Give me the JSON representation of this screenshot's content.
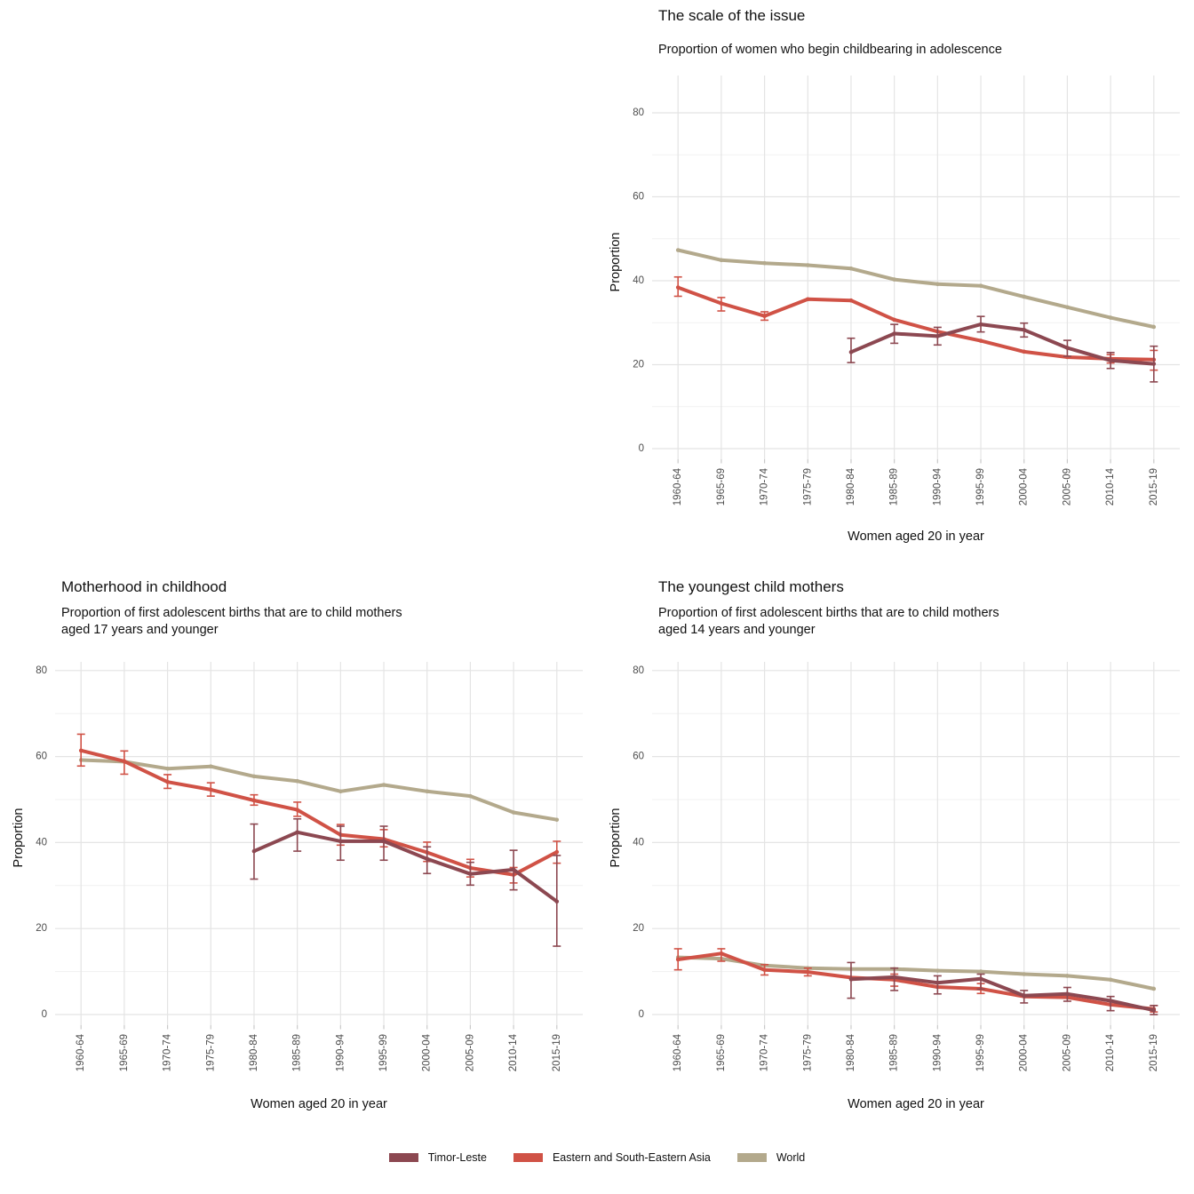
{
  "colors": {
    "timor_leste": "#8c4851",
    "eastern_se_asia": "#d05246",
    "world": "#b3a98c",
    "grid_major": "#e4e4e4",
    "grid_minor": "#f1f1f1",
    "axis_tick": "#c9c9c9",
    "tick_label": "#4d4d4d",
    "text": "#111111"
  },
  "legend": {
    "items": [
      {
        "label": "Timor-Leste",
        "color": "#8c4851"
      },
      {
        "label": "Eastern and South-Eastern Asia",
        "color": "#d05246"
      },
      {
        "label": "World",
        "color": "#b3a98c"
      }
    ]
  },
  "chart_data": [
    {
      "type": "line",
      "layout": "top",
      "title": "The scale of the issue",
      "subtitle_lines": [
        "Proportion of women who begin childbearing in adolescence"
      ],
      "xlabel": "Women aged 20 in year",
      "ylabel": "Proportion",
      "ylim": [
        0,
        80
      ],
      "y_ticks": [
        0,
        20,
        40,
        60,
        80
      ],
      "y_minor_ticks": [
        10,
        30,
        50,
        70
      ],
      "grid": true,
      "legend_position": "bottom",
      "categories": [
        "1960-64",
        "1965-69",
        "1970-74",
        "1975-79",
        "1980-84",
        "1985-89",
        "1990-94",
        "1995-99",
        "2000-04",
        "2005-09",
        "2010-14",
        "2015-19"
      ],
      "series": [
        {
          "name": "World",
          "color": "#b3a98c",
          "values": [
            47.3,
            44.9,
            44.2,
            43.7,
            42.9,
            40.3,
            39.2,
            38.8,
            36.2,
            33.7,
            31.2,
            29.0
          ],
          "errors": null
        },
        {
          "name": "Eastern and South-Eastern Asia",
          "color": "#d05246",
          "values": [
            38.4,
            34.6,
            31.6,
            35.6,
            35.3,
            30.7,
            27.9,
            25.7,
            23.1,
            21.8,
            21.4,
            21.2
          ],
          "errors": [
            [
              36.3,
              40.9
            ],
            [
              32.8,
              36.0
            ],
            [
              30.6,
              32.6
            ],
            null,
            null,
            null,
            null,
            null,
            null,
            null,
            [
              20.4,
              22.4
            ],
            [
              18.7,
              23.4
            ]
          ]
        },
        {
          "name": "Timor-Leste",
          "color": "#8c4851",
          "values": [
            null,
            null,
            null,
            null,
            23.0,
            27.4,
            26.8,
            29.6,
            28.3,
            24.0,
            21.0,
            20.2
          ],
          "errors": [
            null,
            null,
            null,
            null,
            [
              20.5,
              26.3
            ],
            [
              25.1,
              29.6
            ],
            [
              24.7,
              28.9
            ],
            [
              27.8,
              31.5
            ],
            [
              26.6,
              29.9
            ],
            [
              22.0,
              25.8
            ],
            [
              19.1,
              22.9
            ],
            [
              15.9,
              24.4
            ]
          ]
        }
      ]
    },
    {
      "type": "line",
      "layout": "bottom",
      "title": "Motherhood in childhood",
      "subtitle_lines": [
        "Proportion of first adolescent births that are to child mothers",
        "aged 17 years and younger"
      ],
      "xlabel": "Women aged 20 in year",
      "ylabel": "Proportion",
      "ylim": [
        0,
        80
      ],
      "y_ticks": [
        0,
        20,
        40,
        60,
        80
      ],
      "y_minor_ticks": [
        10,
        30,
        50,
        70
      ],
      "grid": true,
      "legend_position": "bottom",
      "categories": [
        "1960-64",
        "1965-69",
        "1970-74",
        "1975-79",
        "1980-84",
        "1985-89",
        "1990-94",
        "1995-99",
        "2000-04",
        "2005-09",
        "2010-14",
        "2015-19"
      ],
      "series": [
        {
          "name": "World",
          "color": "#b3a98c",
          "values": [
            59.2,
            58.8,
            57.2,
            57.7,
            55.4,
            54.3,
            51.9,
            53.4,
            51.9,
            50.8,
            47.0,
            45.3
          ],
          "errors": null
        },
        {
          "name": "Eastern and South-Eastern Asia",
          "color": "#d05246",
          "values": [
            61.4,
            58.9,
            54.1,
            52.3,
            49.8,
            47.6,
            41.8,
            40.8,
            37.7,
            34.1,
            32.5,
            37.8
          ],
          "errors": [
            [
              57.8,
              65.2
            ],
            [
              55.9,
              61.3
            ],
            [
              52.6,
              55.8
            ],
            [
              50.8,
              53.9
            ],
            [
              48.7,
              51.1
            ],
            [
              46.1,
              49.4
            ],
            [
              39.4,
              44.2
            ],
            [
              39.0,
              43.0
            ],
            [
              35.6,
              40.1
            ],
            [
              32.0,
              36.1
            ],
            [
              30.6,
              34.2
            ],
            [
              35.2,
              40.3
            ]
          ]
        },
        {
          "name": "Timor-Leste",
          "color": "#8c4851",
          "values": [
            null,
            null,
            null,
            null,
            38.0,
            42.4,
            40.3,
            40.3,
            36.2,
            32.7,
            33.7,
            26.3
          ],
          "errors": [
            null,
            null,
            null,
            null,
            [
              31.5,
              44.3
            ],
            [
              38.0,
              45.5
            ],
            [
              35.9,
              43.8
            ],
            [
              35.9,
              43.8
            ],
            [
              32.8,
              39.0
            ],
            [
              30.1,
              35.4
            ],
            [
              29.0,
              38.2
            ],
            [
              15.9,
              37.0
            ]
          ]
        }
      ]
    },
    {
      "type": "line",
      "layout": "bottom",
      "title": "The youngest child mothers",
      "subtitle_lines": [
        "Proportion of first adolescent births that are to child mothers",
        "aged 14 years and younger"
      ],
      "xlabel": "Women aged 20 in year",
      "ylabel": "Proportion",
      "ylim": [
        0,
        80
      ],
      "y_ticks": [
        0,
        20,
        40,
        60,
        80
      ],
      "y_minor_ticks": [
        10,
        30,
        50,
        70
      ],
      "grid": true,
      "legend_position": "bottom",
      "categories": [
        "1960-64",
        "1965-69",
        "1970-74",
        "1975-79",
        "1980-84",
        "1985-89",
        "1990-94",
        "1995-99",
        "2000-04",
        "2005-09",
        "2010-14",
        "2015-19"
      ],
      "series": [
        {
          "name": "World",
          "color": "#b3a98c",
          "values": [
            13.3,
            13.0,
            11.4,
            10.8,
            10.6,
            10.6,
            10.2,
            10.0,
            9.4,
            9.0,
            8.1,
            6.0
          ],
          "errors": null
        },
        {
          "name": "Eastern and South-Eastern Asia",
          "color": "#d05246",
          "values": [
            12.8,
            14.2,
            10.4,
            9.9,
            8.6,
            8.1,
            6.4,
            6.0,
            4.2,
            4.0,
            2.3,
            1.3
          ],
          "errors": [
            [
              10.4,
              15.3
            ],
            [
              12.4,
              15.3
            ],
            [
              9.2,
              11.6
            ],
            [
              9.0,
              10.8
            ],
            null,
            [
              6.6,
              9.4
            ],
            null,
            [
              4.9,
              7.2
            ],
            null,
            null,
            null,
            [
              0.6,
              2.1
            ]
          ]
        },
        {
          "name": "Timor-Leste",
          "color": "#8c4851",
          "values": [
            null,
            null,
            null,
            null,
            8.2,
            8.7,
            7.4,
            8.3,
            4.4,
            4.8,
            3.2,
            1.0
          ],
          "errors": [
            null,
            null,
            null,
            null,
            [
              3.8,
              12.1
            ],
            [
              5.6,
              10.8
            ],
            [
              4.8,
              9.0
            ],
            [
              5.9,
              9.4
            ],
            [
              2.7,
              5.6
            ],
            [
              3.1,
              6.3
            ],
            [
              0.9,
              4.2
            ],
            [
              0.0,
              2.1
            ]
          ]
        }
      ]
    }
  ]
}
